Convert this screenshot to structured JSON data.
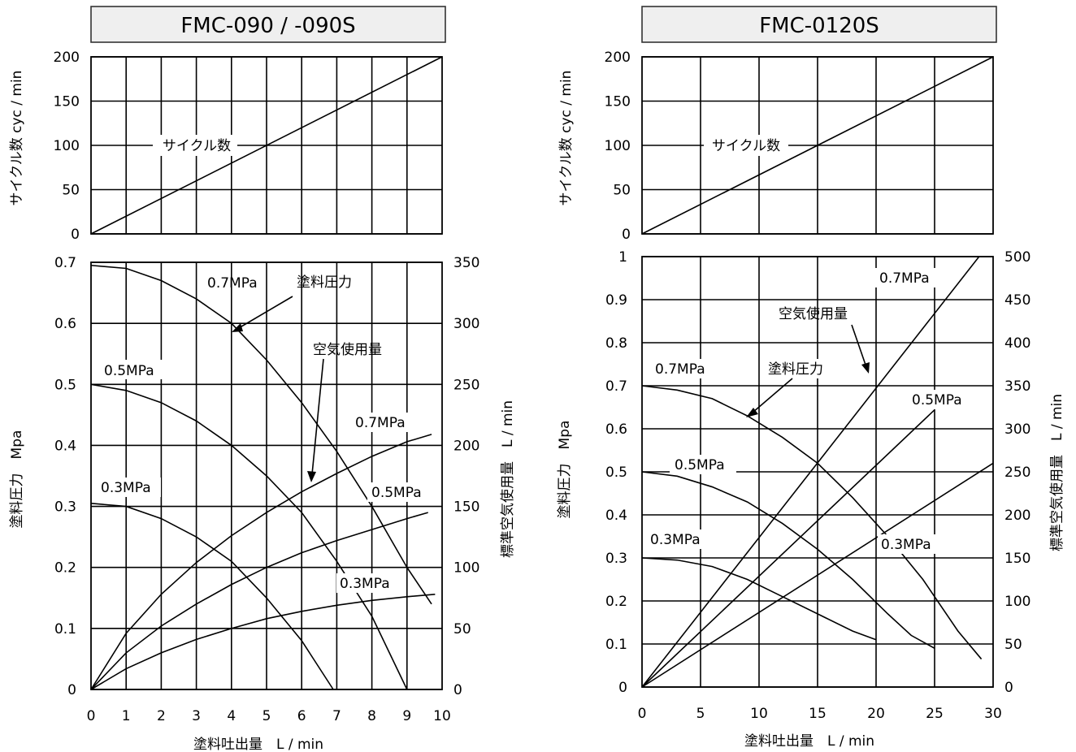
{
  "chart_data": [
    {
      "title": "FMC-090 / -090S",
      "top": {
        "type": "line",
        "ylabel": "サイクル数 cyc / min",
        "xlim": [
          0,
          10
        ],
        "ylim": [
          0,
          200
        ],
        "yticks": [
          0,
          50,
          100,
          150,
          200
        ],
        "series": [
          {
            "name": "サイクル数",
            "x": [
              0,
              10
            ],
            "y": [
              0,
              200
            ]
          }
        ]
      },
      "bottom": {
        "type": "line",
        "xlabel": "塗料吐出量　L / min",
        "ylabel": "塗料圧力　Mpa",
        "y2label": "標準空気使用量　L / min",
        "xlim": [
          0,
          10
        ],
        "ylim": [
          0,
          0.7
        ],
        "y2lim": [
          0,
          350
        ],
        "xticks": [
          0,
          1,
          2,
          3,
          4,
          5,
          6,
          7,
          8,
          9,
          10
        ],
        "yticks": [
          0,
          0.1,
          0.2,
          0.3,
          0.4,
          0.5,
          0.6,
          0.7
        ],
        "y2ticks": [
          0,
          50,
          100,
          150,
          200,
          250,
          300,
          350
        ],
        "paint_pressure": [
          {
            "name": "0.7MPa",
            "x": [
              0,
              1,
              2,
              3,
              4,
              5,
              6,
              7,
              8,
              9,
              9.7
            ],
            "y": [
              0.695,
              0.69,
              0.67,
              0.64,
              0.6,
              0.54,
              0.47,
              0.39,
              0.3,
              0.2,
              0.14
            ]
          },
          {
            "name": "0.5MPa",
            "x": [
              0,
              1,
              2,
              3,
              4,
              5,
              6,
              7,
              8,
              9
            ],
            "y": [
              0.5,
              0.49,
              0.47,
              0.44,
              0.4,
              0.35,
              0.29,
              0.21,
              0.12,
              0
            ]
          },
          {
            "name": "0.3MPa",
            "x": [
              0,
              1,
              2,
              3,
              4,
              5,
              6,
              6.9
            ],
            "y": [
              0.305,
              0.3,
              0.28,
              0.25,
              0.21,
              0.15,
              0.08,
              0
            ]
          }
        ],
        "air_consumption": [
          {
            "name": "0.7MPa",
            "x": [
              0,
              1,
              2,
              3,
              4,
              5,
              6,
              7,
              8,
              9,
              9.7
            ],
            "y": [
              0,
              46,
              78,
              104,
              126,
              145,
              162,
              177,
              191,
              203,
              209
            ]
          },
          {
            "name": "0.5MPa",
            "x": [
              0,
              1,
              2,
              3,
              4,
              5,
              6,
              7,
              8,
              9,
              9.6
            ],
            "y": [
              0,
              30,
              52,
              70,
              86,
              100,
              112,
              122,
              131,
              140,
              145
            ]
          },
          {
            "name": "0.3MPa",
            "x": [
              0,
              1,
              2,
              3,
              4,
              5,
              6,
              7,
              8,
              9,
              9.8
            ],
            "y": [
              0,
              17,
              30,
              41,
              50,
              58,
              64,
              69,
              73,
              76,
              78
            ]
          }
        ],
        "annotations": [
          "0.7MPa",
          "塗料圧力",
          "空気使用量",
          "0.5MPa",
          "0.3MPa",
          "0.7MPa",
          "0.5MPa",
          "0.3MPa",
          "サイクル数"
        ]
      }
    },
    {
      "title": "FMC-0120S",
      "top": {
        "type": "line",
        "ylabel": "サイクル数 cyc / min",
        "xlim": [
          0,
          30
        ],
        "ylim": [
          0,
          200
        ],
        "yticks": [
          0,
          50,
          100,
          150,
          200
        ],
        "series": [
          {
            "name": "サイクル数",
            "x": [
              0,
              30
            ],
            "y": [
              0,
              200
            ]
          }
        ]
      },
      "bottom": {
        "type": "line",
        "xlabel": "塗料吐出量　L / min",
        "ylabel": "塗料圧力　Mpa",
        "y2label": "標準空気使用量　L / min",
        "xlim": [
          0,
          30
        ],
        "ylim": [
          0,
          1
        ],
        "y2lim": [
          0,
          500
        ],
        "xticks": [
          0,
          5,
          10,
          15,
          20,
          25,
          30
        ],
        "yticks": [
          0,
          0.1,
          0.2,
          0.3,
          0.4,
          0.5,
          0.6,
          0.7,
          0.8,
          0.9,
          1
        ],
        "y2ticks": [
          0,
          50,
          100,
          150,
          200,
          250,
          300,
          350,
          400,
          450,
          500
        ],
        "paint_pressure": [
          {
            "name": "0.7MPa",
            "x": [
              0,
              3,
              6,
              9,
              12,
              15,
              18,
              21,
              24,
              27,
              29
            ],
            "y": [
              0.7,
              0.69,
              0.67,
              0.63,
              0.58,
              0.52,
              0.44,
              0.35,
              0.25,
              0.13,
              0.065
            ]
          },
          {
            "name": "0.5MPa",
            "x": [
              0,
              3,
              6,
              9,
              12,
              15,
              18,
              21,
              23,
              25
            ],
            "y": [
              0.5,
              0.49,
              0.465,
              0.43,
              0.38,
              0.32,
              0.25,
              0.17,
              0.12,
              0.09
            ]
          },
          {
            "name": "0.3MPa",
            "x": [
              0,
              3,
              6,
              9,
              12,
              15,
              18,
              20
            ],
            "y": [
              0.3,
              0.295,
              0.28,
              0.25,
              0.21,
              0.17,
              0.13,
              0.11
            ]
          }
        ],
        "air_consumption": [
          {
            "name": "0.7MPa",
            "x": [
              0,
              28.8
            ],
            "y": [
              0,
              500
            ]
          },
          {
            "name": "0.5MPa",
            "x": [
              0,
              25
            ],
            "y": [
              0,
              322
            ]
          },
          {
            "name": "0.3MPa",
            "x": [
              0,
              30
            ],
            "y": [
              0,
              260
            ]
          }
        ],
        "annotations": [
          "0.7MPa",
          "空気使用量",
          "0.7MPa",
          "塗料圧力",
          "0.5MPa",
          "0.5MPa",
          "0.3MPa",
          "0.3MPa",
          "サイクル数"
        ]
      }
    }
  ]
}
